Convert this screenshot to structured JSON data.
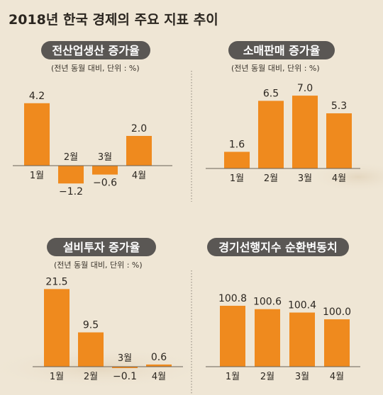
{
  "title": "2018년 한국 경제의 주요 지표 추이",
  "chart_data": [
    {
      "type": "bar",
      "title": "전산업생산 증가율",
      "unit_note": "(전년 동월 대비, 단위 : %)",
      "categories": [
        "1월",
        "2월",
        "3월",
        "4월"
      ],
      "values": [
        4.2,
        -1.2,
        -0.6,
        2.0
      ],
      "value_labels": [
        "4.2",
        "−1.2",
        "−0.6",
        "2.0"
      ]
    },
    {
      "type": "bar",
      "title": "소매판매 증가율",
      "unit_note": "(전년 동월 대비, 단위 : %)",
      "categories": [
        "1월",
        "2월",
        "3월",
        "4월"
      ],
      "values": [
        1.6,
        6.5,
        7.0,
        5.3
      ],
      "value_labels": [
        "1.6",
        "6.5",
        "7.0",
        "5.3"
      ]
    },
    {
      "type": "bar",
      "title": "설비투자 증가율",
      "unit_note": "(전년 동월 대비, 단위 : %)",
      "categories": [
        "1월",
        "2월",
        "3월",
        "4월"
      ],
      "values": [
        21.5,
        9.5,
        -0.1,
        0.6
      ],
      "value_labels": [
        "21.5",
        "9.5",
        "−0.1",
        "0.6"
      ]
    },
    {
      "type": "bar",
      "title": "경기선행지수 순환변동치",
      "unit_note": "",
      "categories": [
        "1월",
        "2월",
        "3월",
        "4월"
      ],
      "values": [
        100.8,
        100.6,
        100.4,
        100.0
      ],
      "value_labels": [
        "100.8",
        "100.6",
        "100.4",
        "100.0"
      ]
    }
  ]
}
